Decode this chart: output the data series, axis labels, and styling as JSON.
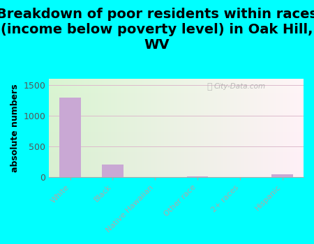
{
  "title": "Breakdown of poor residents within races\n(income below poverty level) in Oak Hill,\nWV",
  "categories": [
    "White",
    "Black",
    "Native Hawaiian",
    "Other race",
    "2+ races",
    "Hispanic"
  ],
  "values": [
    1300,
    210,
    0,
    20,
    0,
    50
  ],
  "bar_color": "#C9A8D4",
  "ylabel": "absolute numbers",
  "ylim": [
    0,
    1600
  ],
  "yticks": [
    0,
    500,
    1000,
    1500
  ],
  "background_outer": "#00FFFF",
  "title_fontsize": 14,
  "watermark": "City-Data.com"
}
